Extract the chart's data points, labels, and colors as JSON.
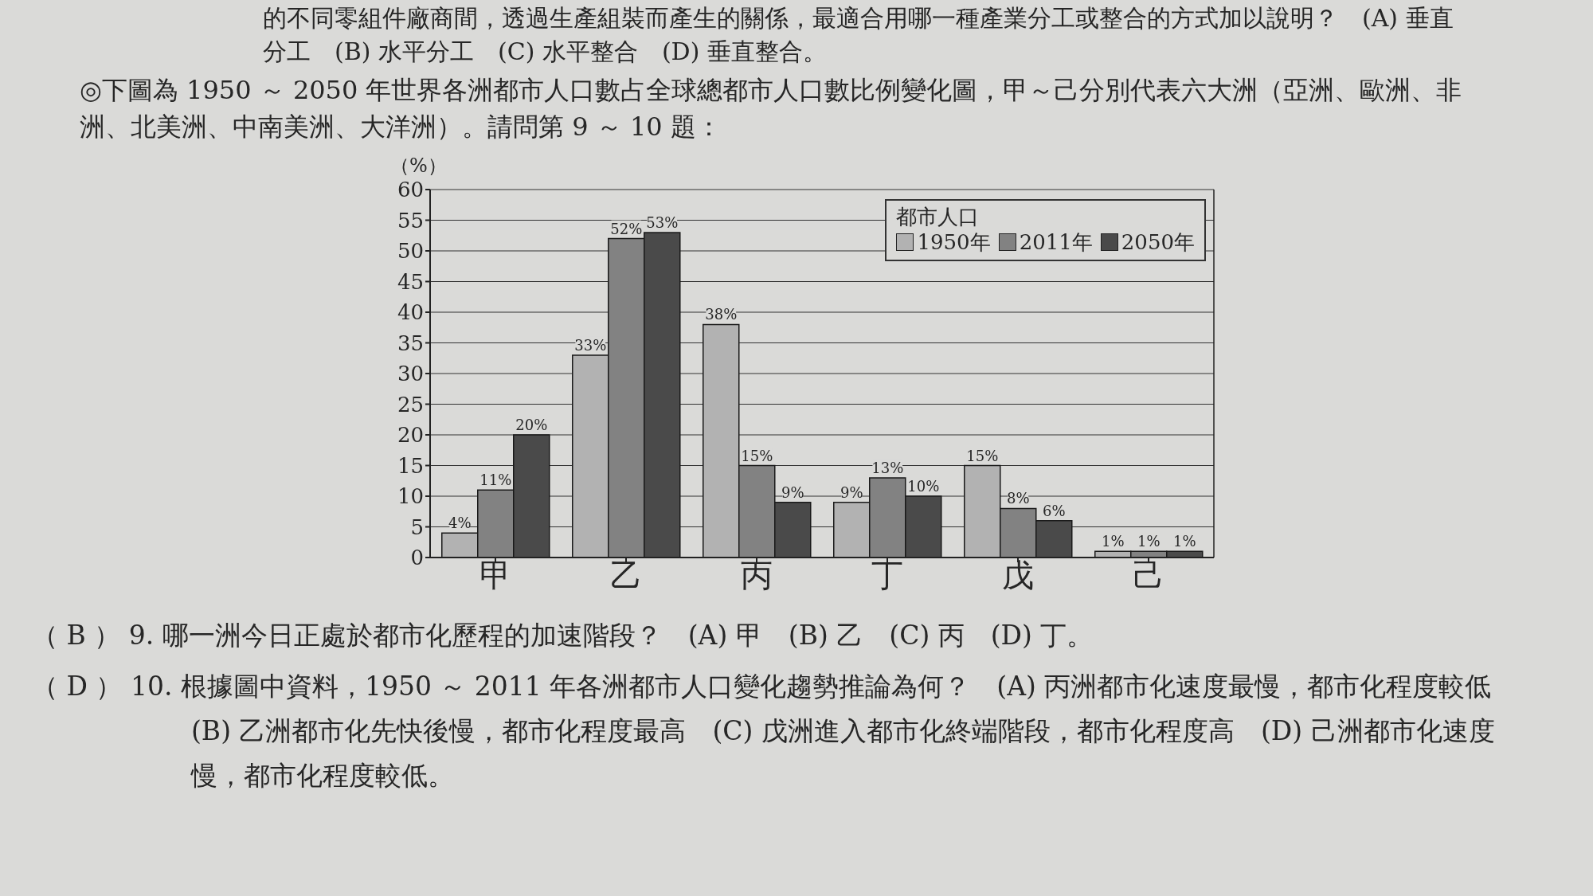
{
  "chart_data": {
    "type": "bar",
    "title": "◎下圖為 1950 ～ 2050 年世界各洲都市人口數占全球總都市人口數比例變化圖，甲～己分別代表六大洲（亞洲、歐洲、非洲、北美洲、中南美洲、大洋洲）。請問第 9 ～ 10 題：",
    "ylabel": "（%）",
    "legend_title": "都市人口",
    "categories": [
      "甲",
      "乙",
      "丙",
      "丁",
      "戊",
      "己"
    ],
    "series": [
      {
        "name": "1950年",
        "color": "#b2b2b2",
        "values": [
          4,
          33,
          38,
          9,
          15,
          1
        ],
        "value_labels": [
          "4%",
          "33%",
          "38%",
          "9%",
          "15%",
          "1%"
        ]
      },
      {
        "name": "2011年",
        "color": "#828282",
        "values": [
          11,
          52,
          15,
          13,
          8,
          1
        ],
        "value_labels": [
          "11%",
          "52%",
          "15%",
          "13%",
          "8%",
          "1%"
        ]
      },
      {
        "name": "2050年",
        "color": "#4a4a4a",
        "values": [
          20,
          53,
          9,
          10,
          6,
          1
        ],
        "value_labels": [
          "20%",
          "53%",
          "9%",
          "10%",
          "6%",
          "1%"
        ]
      }
    ],
    "ylim": [
      0,
      60
    ],
    "yticks": [
      0,
      5,
      10,
      15,
      20,
      25,
      30,
      35,
      40,
      45,
      50,
      55,
      60
    ],
    "grid": "y",
    "legend": "top right",
    "annotations": [
      "的不同零組件廠商間，透過生產組裝而產生的關係，最適合用哪一種產業分工或整合的方式加以說明？　(A) 垂直分工　(B) 水平分工　(C) 水平整合　(D) 垂直整合。",
      "（ B ） 9. 哪一洲今日正處於都市化歷程的加速階段？　(A) 甲　(B) 乙　(C) 丙　(D) 丁。",
      "（ D ） 10. 根據圖中資料，1950 ～ 2011 年各洲都市人口變化趨勢推論為何？　(A) 丙洲都市化速度最慢，都市化程度較低　(B) 乙洲都市化先快後慢，都市化程度最高　(C) 戊洲進入都市化終端階段，都市化程度高　(D) 己洲都市化速度慢，都市化程度較低。"
    ]
  }
}
